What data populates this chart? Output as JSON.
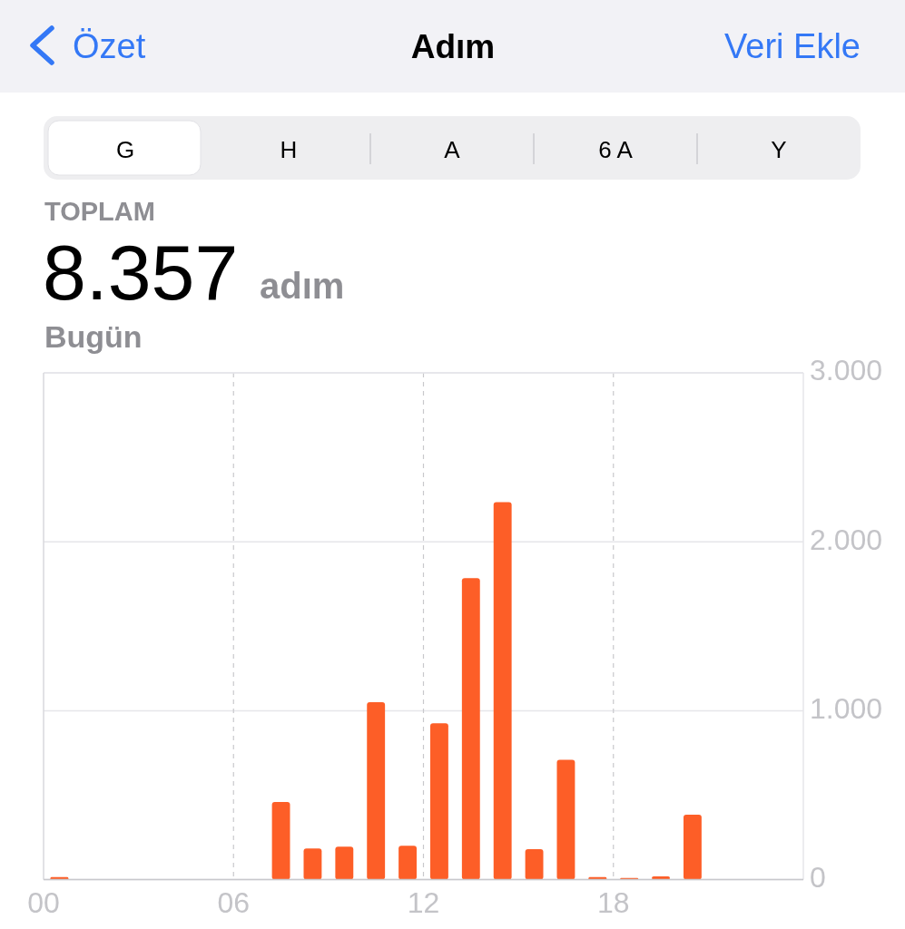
{
  "chart_data": {
    "type": "bar",
    "title": "Adım",
    "annotations": [
      "Özet",
      "Veri Ekle",
      "G",
      "H",
      "A",
      "6 A",
      "Y",
      "TOPLAM",
      "8.357",
      "adım",
      "Bugün"
    ],
    "x": [
      0.5,
      7.5,
      8.5,
      9.5,
      10.5,
      11.5,
      12.5,
      13.5,
      14.5,
      15.5,
      16.5,
      17.5,
      18.5,
      19.5,
      20.5
    ],
    "values": [
      15,
      460,
      185,
      195,
      1050,
      200,
      925,
      1785,
      2235,
      180,
      710,
      15,
      10,
      20,
      385
    ],
    "color": "#fd5e27",
    "xlim": [
      0,
      24
    ],
    "xticks": [
      {
        "value": 0,
        "label": "00"
      },
      {
        "value": 6,
        "label": "06"
      },
      {
        "value": 12,
        "label": "12"
      },
      {
        "value": 18,
        "label": "18"
      }
    ],
    "ylim": [
      0,
      3000
    ],
    "yticks": [
      0,
      {
        "value": 1000,
        "label": "1.000"
      },
      {
        "value": 2000,
        "label": "2.000"
      },
      {
        "value": 3000,
        "label": "3.000"
      }
    ],
    "grid": true
  }
}
